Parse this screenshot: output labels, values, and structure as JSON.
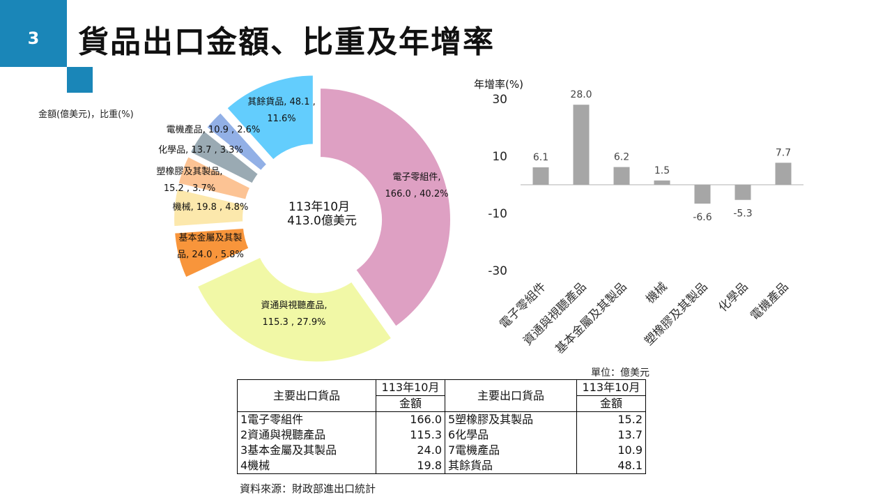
{
  "slide_number": "3",
  "title": "貨品出口金額、比重及年增率",
  "units_note": "單位：億美元",
  "source_note": "資料來源：財政部進出口統計",
  "colors": {
    "accent": "#1a86b8",
    "bar": "#a6a6a6"
  },
  "chart_data": [
    {
      "type": "pie",
      "subtype": "donut",
      "label_caption": "金額(億美元)，比重(%)",
      "center_text": [
        "113年10月",
        "413.0億美元"
      ],
      "slices": [
        {
          "name": "電子零組件",
          "value": 166.0,
          "percent": 40.2,
          "color": "#dea0c3",
          "label_lines": [
            "電子零組件,",
            "166.0 , 40.2%"
          ]
        },
        {
          "name": "資通與視聽產品",
          "value": 115.3,
          "percent": 27.9,
          "color": "#f1f8a6",
          "label_lines": [
            "資通與視聽產品,",
            "115.3 , 27.9%"
          ]
        },
        {
          "name": "基本金屬及其製品",
          "value": 24.0,
          "percent": 5.8,
          "color": "#f8953b",
          "label_lines": [
            "基本金屬及其製",
            "品, 24.0 , 5.8%"
          ]
        },
        {
          "name": "機械",
          "value": 19.8,
          "percent": 4.8,
          "color": "#fce8ac",
          "label_lines": [
            "機械, 19.8 , 4.8%"
          ]
        },
        {
          "name": "塑橡膠及其製品",
          "value": 15.2,
          "percent": 3.7,
          "color": "#fcc394",
          "label_lines": [
            "塑橡膠及其製品,",
            "15.2 , 3.7%"
          ]
        },
        {
          "name": "化學品",
          "value": 13.7,
          "percent": 3.3,
          "color": "#9aaab3",
          "label_lines": [
            "化學品, 13.7 , 3.3%"
          ]
        },
        {
          "name": "電機產品",
          "value": 10.9,
          "percent": 2.6,
          "color": "#92b0e6",
          "label_lines": [
            "電機產品, 10.9 , 2.6%"
          ]
        },
        {
          "name": "其餘貨品",
          "value": 48.1,
          "percent": 11.6,
          "color": "#63cdfd",
          "label_lines": [
            "其餘貨品, 48.1 ,",
            "11.6%"
          ]
        }
      ]
    },
    {
      "type": "bar",
      "ylabel": "年增率(%)",
      "ylim": [
        -30,
        30
      ],
      "yticks": [
        30,
        10,
        -10,
        -30
      ],
      "categories": [
        "電子零組件",
        "資通與視聽產品",
        "基本金屬及其製品",
        "機械",
        "塑橡膠及其製品",
        "化學品",
        "電機產品"
      ],
      "values": [
        6.1,
        28.0,
        6.2,
        1.5,
        -6.6,
        -5.3,
        7.7
      ],
      "value_labels": [
        "6.1",
        "28.0",
        "6.2",
        "1.5",
        "-6.6",
        "-5.3",
        "7.7"
      ]
    }
  ],
  "table": {
    "col_item_header": "主要出口貨品",
    "col_period_header": "113年10月",
    "col_amount_header": "金額",
    "rows": [
      {
        "left_item": "1電子零組件",
        "left_value": "166.0",
        "right_item": "5塑橡膠及其製品",
        "right_value": "15.2"
      },
      {
        "left_item": "2資通與視聽產品",
        "left_value": "115.3",
        "right_item": "6化學品",
        "right_value": "13.7"
      },
      {
        "left_item": "3基本金屬及其製品",
        "left_value": "24.0",
        "right_item": "7電機產品",
        "right_value": "10.9"
      },
      {
        "left_item": "4機械",
        "left_value": "19.8",
        "right_item": "其餘貨品",
        "right_value": "48.1"
      }
    ]
  }
}
